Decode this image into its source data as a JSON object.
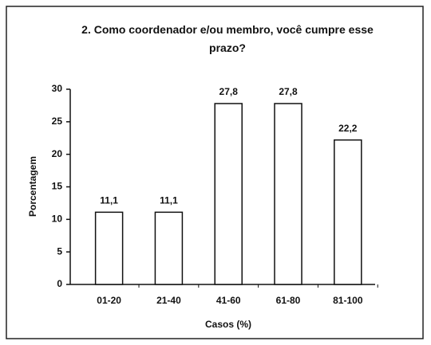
{
  "chart_data": {
    "type": "bar",
    "title": "2. Como coordenador e/ou membro, você cumpre esse prazo?",
    "categories": [
      "01-20",
      "21-40",
      "41-60",
      "61-80",
      "81-100"
    ],
    "values": [
      11.1,
      11.1,
      27.8,
      27.8,
      22.2
    ],
    "value_labels": [
      "11,1",
      "11,1",
      "27,8",
      "27,8",
      "22,2"
    ],
    "color": "#ffffff",
    "ylim": [
      0,
      30
    ],
    "yticks": [
      0,
      5,
      10,
      15,
      20,
      25,
      30
    ],
    "xlabel": "Casos (%)",
    "ylabel": "Porcentagem",
    "grid": false
  }
}
